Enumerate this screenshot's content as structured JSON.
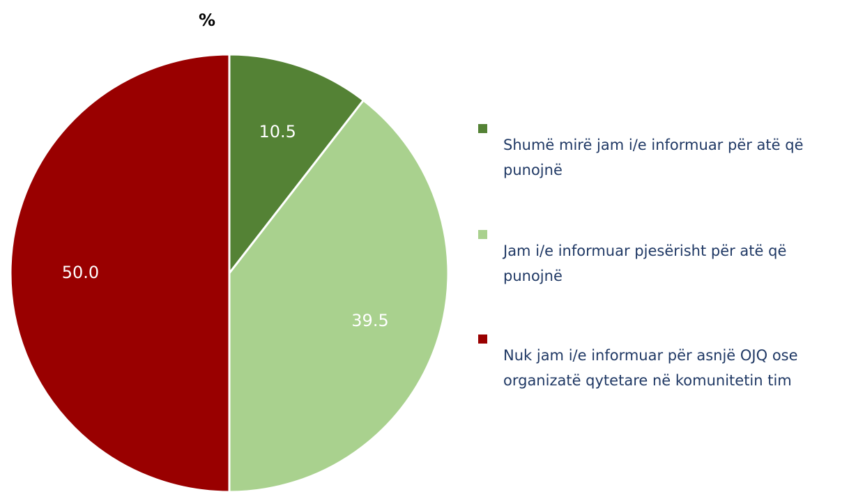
{
  "chart_data": {
    "type": "pie",
    "title": "%",
    "categories": [
      "Shumë mirë jam i/e informuar për atë që punojnë",
      "Jam i/e informuar pjesërisht për atë që punojnë",
      "Nuk jam i/e informuar për asnjë OJQ ose organizatë qytetare në komunitetin tim"
    ],
    "values": [
      10.5,
      39.5,
      50.0
    ],
    "value_labels": [
      "10.5",
      "39.5",
      "50.0"
    ],
    "colors": [
      "#548235",
      "#a9d18e",
      "#990000"
    ],
    "legend": "right"
  }
}
